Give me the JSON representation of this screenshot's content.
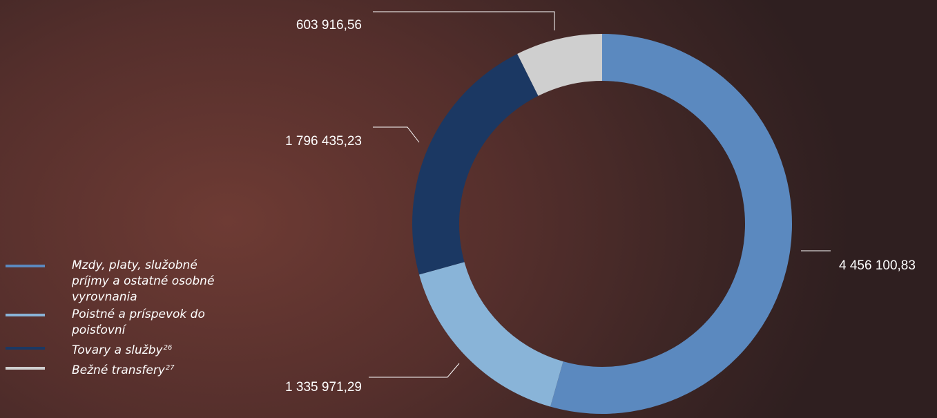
{
  "chart_data": {
    "type": "donut",
    "categories": [
      "Mzdy, platy, služobné príjmy a ostatné osobné vyrovnania",
      "Poistné a príspevok do poisťovní",
      "Tovary a služby",
      "Bežné transfery"
    ],
    "footnotes": [
      "",
      "",
      "26",
      "27"
    ],
    "values": [
      4456100.83,
      1335971.29,
      1796435.23,
      603916.56
    ],
    "value_labels": [
      "4 456 100,83",
      "1 335 971,29",
      "1 796 435,23",
      "603 916,56"
    ],
    "colors": [
      "#5b89bf",
      "#89b4d8",
      "#1b3863",
      "#cfcfcf"
    ],
    "legend_position": "bottom-left",
    "title": "",
    "xlabel": "",
    "ylabel": ""
  }
}
